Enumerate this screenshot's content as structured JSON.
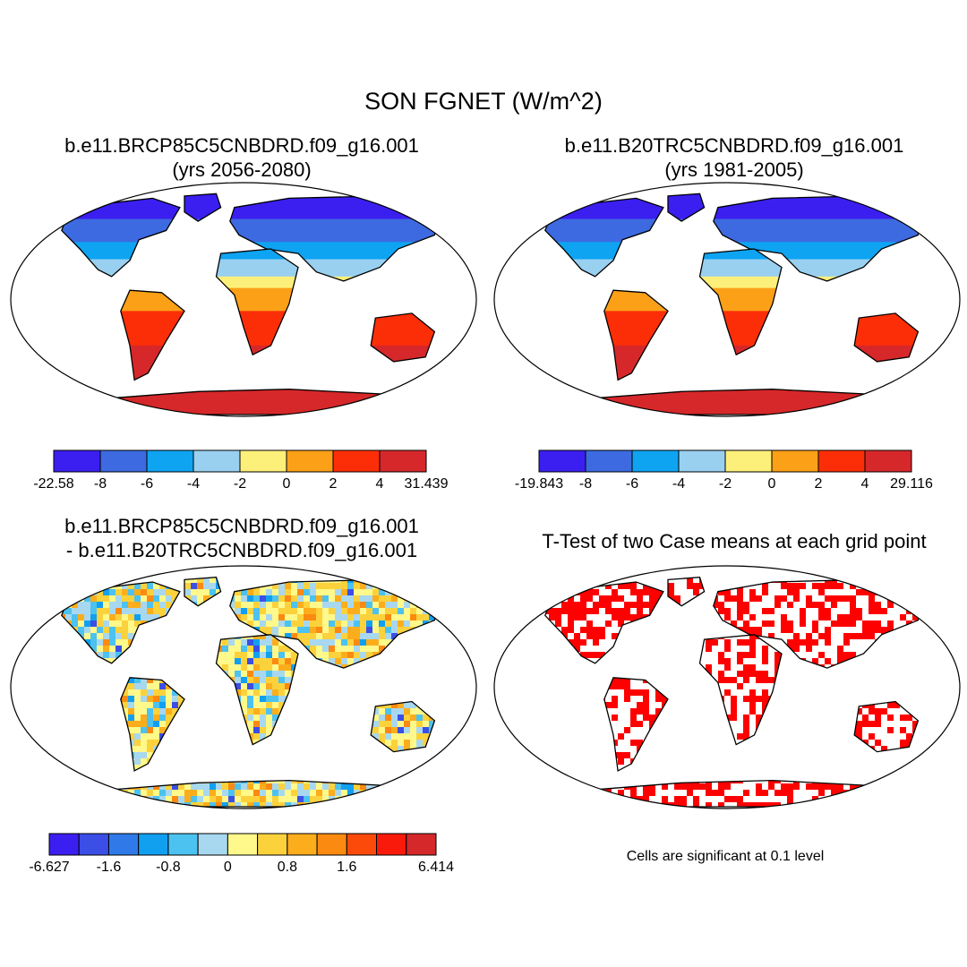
{
  "figure": {
    "title": "SON FGNET (W/m^2)"
  },
  "panels": [
    {
      "id": "future",
      "title_line1": "b.e11.BRCP85C5CNBDRD.f09_g16.001",
      "title_line2": "(yrs 2056-2080)",
      "colorbar": {
        "labels": [
          "-22.58",
          "-8",
          "-6",
          "-4",
          "-2",
          "0",
          "2",
          "4",
          "31.439"
        ],
        "colors": [
          "#3b1ff0",
          "#3d6ae0",
          "#0ea4f2",
          "#99d0f0",
          "#fdf07a",
          "#fca018",
          "#fc2e08",
          "#d6282a"
        ]
      }
    },
    {
      "id": "historical",
      "title_line1": "b.e11.B20TRC5CNBDRD.f09_g16.001",
      "title_line2": "(yrs 1981-2005)",
      "colorbar": {
        "labels": [
          "-19.843",
          "-8",
          "-6",
          "-4",
          "-2",
          "0",
          "2",
          "4",
          "29.116"
        ],
        "colors": [
          "#3b1ff0",
          "#3d6ae0",
          "#0ea4f2",
          "#99d0f0",
          "#fdf07a",
          "#fca018",
          "#fc2e08",
          "#d6282a"
        ]
      }
    },
    {
      "id": "difference",
      "title_line1": "b.e11.BRCP85C5CNBDRD.f09_g16.001",
      "title_line2": "- b.e11.B20TRC5CNBDRD.f09_g16.001",
      "colorbar": {
        "labels": [
          "-6.627",
          "-1.6",
          "-0.8",
          "0",
          "0.8",
          "1.6",
          "6.414"
        ],
        "colors": [
          "#3b1ff0",
          "#3b4ee6",
          "#2f7ae8",
          "#11a0f0",
          "#4cc2f0",
          "#a8d8f0",
          "#fff88a",
          "#fcd23c",
          "#fcad1c",
          "#fa8a10",
          "#fc4a0a",
          "#fa1a0c",
          "#d4282a"
        ]
      }
    },
    {
      "id": "ttest",
      "title_line1": "T-Test of two Case means at each grid point",
      "title_line2": "",
      "note": "Cells are significant at 0.1 level",
      "significant_color": "#ff0000"
    }
  ]
}
